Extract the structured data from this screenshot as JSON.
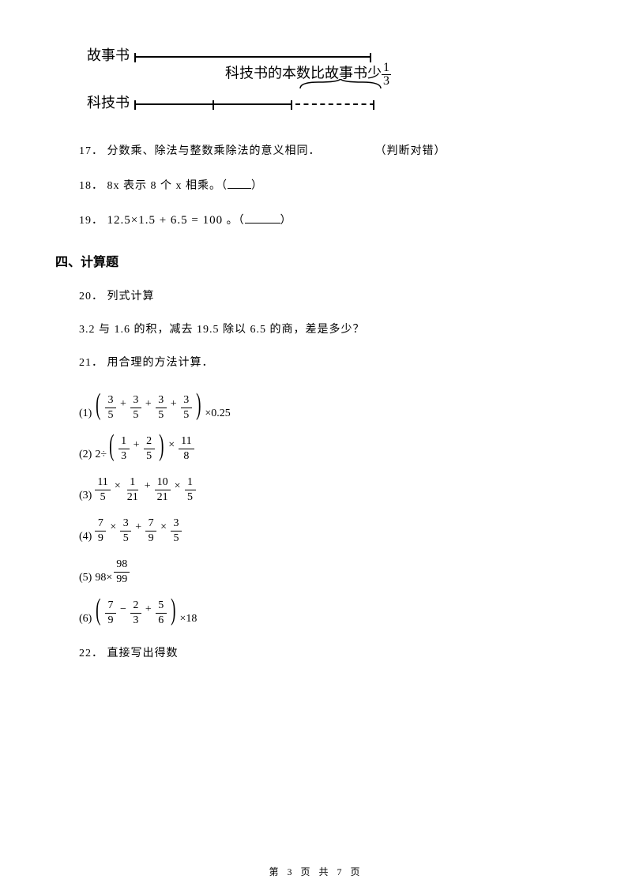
{
  "diagram": {
    "label_top": "故事书",
    "label_bottom": "科技书",
    "annotation_prefix": "科技书的本数比故事书少",
    "frac_num": "1",
    "frac_den": "3",
    "full_bar_width": 300,
    "solid_bar_width": 200,
    "dashed_bar_width": 100,
    "segments": 3,
    "color_line": "#000000"
  },
  "q17": {
    "num": "17．",
    "text": "分数乘、除法与整数乘除法的意义相同．",
    "right": "（判断对错）"
  },
  "q18": {
    "num": "18．",
    "text": "8x 表示 8 个 x 相乘。（",
    "text2": "）"
  },
  "q19": {
    "num": "19．",
    "expr": "12.5×1.5 + 6.5 = 100",
    "suffix": "。（",
    "suffix2": "）"
  },
  "section4": "四、计算题",
  "q20": {
    "num": "20．",
    "title": "列式计算",
    "body": "3.2 与 1.6 的积，减去 19.5 除以 6.5 的商，差是多少？"
  },
  "q21": {
    "num": "21．",
    "title": "用合理的方法计算．",
    "items": [
      {
        "prefix": "(1)",
        "type": "paren_sum",
        "terms": [
          {
            "n": "3",
            "d": "5"
          },
          {
            "op": "+"
          },
          {
            "n": "3",
            "d": "5"
          },
          {
            "op": "+"
          },
          {
            "n": "3",
            "d": "5"
          },
          {
            "op": "+"
          },
          {
            "n": "3",
            "d": "5"
          }
        ],
        "suffix": "×0.25"
      },
      {
        "prefix": "(2)",
        "lead": "2÷",
        "type": "paren_sum",
        "terms": [
          {
            "n": "1",
            "d": "3"
          },
          {
            "op": "+"
          },
          {
            "n": "2",
            "d": "5"
          }
        ],
        "after_terms": [
          {
            "op": "×"
          },
          {
            "n": "11",
            "d": "8"
          }
        ]
      },
      {
        "prefix": "(3)",
        "type": "flat",
        "terms": [
          {
            "n": "11",
            "d": "5"
          },
          {
            "op": "×"
          },
          {
            "n": "1",
            "d": "21"
          },
          {
            "op": "+"
          },
          {
            "n": "10",
            "d": "21"
          },
          {
            "op": "×"
          },
          {
            "n": "1",
            "d": "5"
          }
        ]
      },
      {
        "prefix": "(4)",
        "type": "flat",
        "terms": [
          {
            "n": "7",
            "d": "9"
          },
          {
            "op": "×"
          },
          {
            "n": "3",
            "d": "5"
          },
          {
            "op": "+"
          },
          {
            "n": "7",
            "d": "9"
          },
          {
            "op": "×"
          },
          {
            "n": "3",
            "d": "5"
          }
        ]
      },
      {
        "prefix": "(5)",
        "lead": "98×",
        "type": "flat",
        "terms": [
          {
            "n": "98",
            "d": "99"
          }
        ]
      },
      {
        "prefix": "(6)",
        "type": "paren_sum",
        "terms": [
          {
            "n": "7",
            "d": "9"
          },
          {
            "op": "−"
          },
          {
            "n": "2",
            "d": "3"
          },
          {
            "op": "+"
          },
          {
            "n": "5",
            "d": "6"
          }
        ],
        "suffix": "×18"
      }
    ]
  },
  "q22": {
    "num": "22．",
    "title": "直接写出得数"
  },
  "footer": {
    "text_prefix": "第",
    "page": "3",
    "text_mid": "页 共",
    "total": "7",
    "text_suffix": "页"
  }
}
